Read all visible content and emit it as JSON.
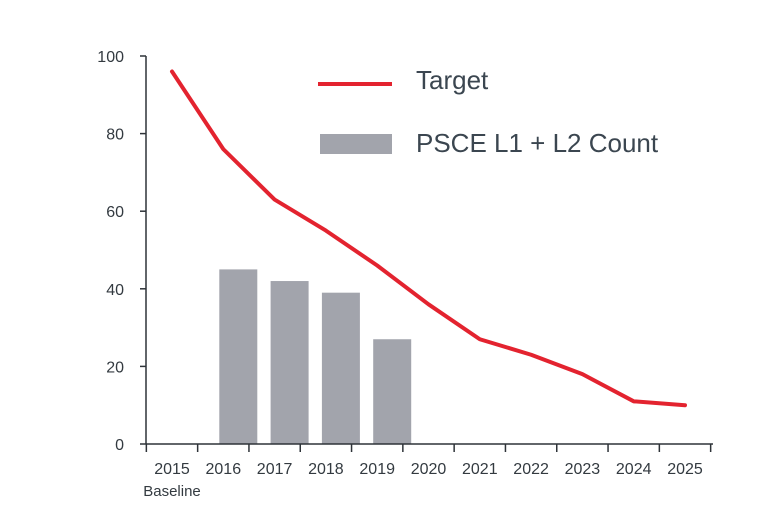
{
  "chart_data": {
    "type": "bar",
    "categories": [
      "2015",
      "2016",
      "2017",
      "2018",
      "2019",
      "2020",
      "2021",
      "2022",
      "2023",
      "2024",
      "2025"
    ],
    "category_sublabels": {
      "2015": "Baseline"
    },
    "series": [
      {
        "name": "Target",
        "type": "line",
        "color": "#e3232f",
        "values": [
          96,
          76,
          63,
          55,
          46,
          36,
          27,
          23,
          18,
          11,
          10
        ]
      },
      {
        "name": "PSCE L1 + L2 Count",
        "type": "bar",
        "color": "#a2a4ac",
        "values": [
          null,
          45,
          42,
          39,
          27,
          null,
          null,
          null,
          null,
          null,
          null
        ]
      }
    ],
    "ylim": [
      0,
      100
    ],
    "yticks": [
      0,
      20,
      40,
      60,
      80,
      100
    ],
    "xlabel": "",
    "ylabel": "",
    "grid": false,
    "legend_position": "top-right"
  }
}
